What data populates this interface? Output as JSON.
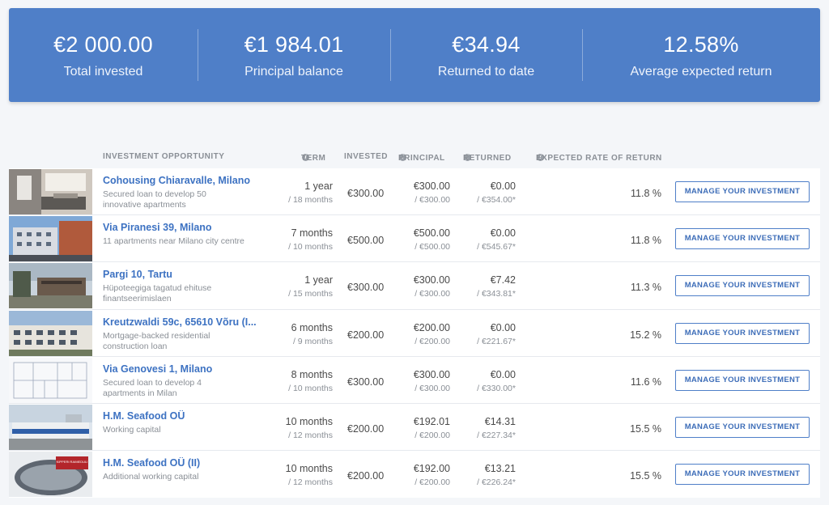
{
  "summary": {
    "total_invested": {
      "value": "€2 000.00",
      "label": "Total invested"
    },
    "principal_balance": {
      "value": "€1 984.01",
      "label": "Principal balance"
    },
    "returned_to_date": {
      "value": "€34.94",
      "label": "Returned to date"
    },
    "average_return": {
      "value": "12.58%",
      "label": "Average expected return"
    }
  },
  "table": {
    "headers": {
      "opportunity": "INVESTMENT OPPORTUNITY",
      "term": "TERM",
      "invested": "INVESTED",
      "principal": "PRINCIPAL",
      "returned": "RETURNED",
      "expected_rate": "EXPECTED RATE OF RETURN"
    },
    "info_icon": "info-icon",
    "button_label": "MANAGE YOUR INVESTMENT",
    "rows": [
      {
        "title": "Cohousing Chiaravalle, Milano",
        "desc": "Secured loan to develop 50 innovative apartments",
        "term": "1 year",
        "term_total": "/ 18 months",
        "invested": "€300.00",
        "principal": "€300.00",
        "principal_total": "/ €300.00",
        "returned": "€0.00",
        "returned_total": "/ €354.00*",
        "rate": "11.8 %"
      },
      {
        "title": "Via Piranesi 39, Milano",
        "desc": "11 apartments near Milano city centre",
        "term": "7 months",
        "term_total": "/ 10 months",
        "invested": "€500.00",
        "principal": "€500.00",
        "principal_total": "/ €500.00",
        "returned": "€0.00",
        "returned_total": "/ €545.67*",
        "rate": "11.8 %"
      },
      {
        "title": "Pargi 10, Tartu",
        "desc": "Hüpoteegiga tagatud ehituse finantseerimislaen",
        "term": "1 year",
        "term_total": "/ 15 months",
        "invested": "€300.00",
        "principal": "€300.00",
        "principal_total": "/ €300.00",
        "returned": "€7.42",
        "returned_total": "/ €343.81*",
        "rate": "11.3 %"
      },
      {
        "title": "Kreutzwaldi 59c, 65610 Võru (I...",
        "desc": "Mortgage-backed residential construction loan",
        "term": "6 months",
        "term_total": "/ 9 months",
        "invested": "€200.00",
        "principal": "€200.00",
        "principal_total": "/ €200.00",
        "returned": "€0.00",
        "returned_total": "/ €221.67*",
        "rate": "15.2 %"
      },
      {
        "title": "Via Genovesi 1, Milano",
        "desc": "Secured loan to develop 4 apartments in Milan",
        "term": "8 months",
        "term_total": "/ 10 months",
        "invested": "€300.00",
        "principal": "€300.00",
        "principal_total": "/ €300.00",
        "returned": "€0.00",
        "returned_total": "/ €330.00*",
        "rate": "11.6 %"
      },
      {
        "title": "H.M. Seafood OÜ",
        "desc": "Working capital",
        "term": "10 months",
        "term_total": "/ 12 months",
        "invested": "€200.00",
        "principal": "€192.01",
        "principal_total": "/ €200.00",
        "returned": "€14.31",
        "returned_total": "/ €227.34*",
        "rate": "15.5 %"
      },
      {
        "title": "H.M. Seafood OÜ (II)",
        "desc": "Additional working capital",
        "term": "10 months",
        "term_total": "/ 12 months",
        "invested": "€200.00",
        "principal": "€192.00",
        "principal_total": "/ €200.00",
        "returned": "€13.21",
        "returned_total": "/ €226.24*",
        "rate": "15.5 %"
      }
    ]
  },
  "thumbnail_text": {
    "row7_label": "KIPPERI RAIMEDULI"
  },
  "colors": {
    "accent": "#4f7fc8",
    "link": "#3d72c2",
    "muted": "#8a8f96"
  }
}
